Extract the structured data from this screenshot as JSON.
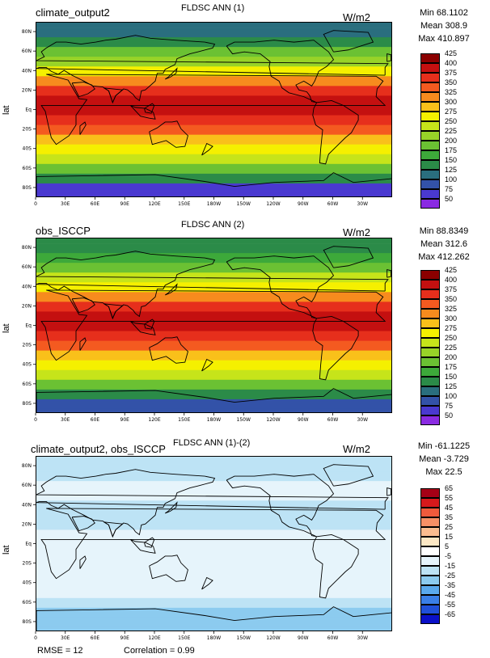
{
  "panels": [
    {
      "left_title": "climate_output2",
      "center_title": "FLDSC ANN (1)",
      "units": "W/m2",
      "stats": {
        "min": "Min 68.1102",
        "mean": "Mean 308.9",
        "max": "Max 410.897"
      },
      "ylabel": "lat",
      "colorbar": {
        "labels": [
          "425",
          "400",
          "375",
          "350",
          "325",
          "300",
          "275",
          "250",
          "225",
          "200",
          "175",
          "150",
          "125",
          "100",
          "75",
          "50"
        ],
        "colors": [
          "#8b0000",
          "#c41010",
          "#e62f1c",
          "#f45a20",
          "#f78b1e",
          "#f9c01a",
          "#f5f000",
          "#c6e41a",
          "#98d328",
          "#6bc133",
          "#3da93a",
          "#2b8b48",
          "#2a6e7e",
          "#3352a8",
          "#4a39d0",
          "#8a2be2"
        ]
      }
    },
    {
      "left_title": "obs_ISCCP",
      "center_title": "FLDSC ANN (2)",
      "units": "W/m2",
      "stats": {
        "min": "Min 88.8349",
        "mean": "Mean 312.6",
        "max": "Max 412.262"
      },
      "ylabel": "lat",
      "colorbar": {
        "labels": [
          "425",
          "400",
          "375",
          "350",
          "325",
          "300",
          "275",
          "250",
          "225",
          "200",
          "175",
          "150",
          "125",
          "100",
          "75",
          "50"
        ],
        "colors": [
          "#8b0000",
          "#c41010",
          "#e62f1c",
          "#f45a20",
          "#f78b1e",
          "#f9c01a",
          "#f5f000",
          "#c6e41a",
          "#98d328",
          "#6bc133",
          "#3da93a",
          "#2b8b48",
          "#2a6e7e",
          "#3352a8",
          "#4a39d0",
          "#8a2be2"
        ]
      }
    },
    {
      "left_title": "climate_output2, obs_ISCCP",
      "center_title": "FLDSC ANN (1)-(2)",
      "units": "W/m2",
      "stats": {
        "min": "Min -61.1225",
        "mean": "Mean -3.729",
        "max": "Max 22.5"
      },
      "ylabel": "lat",
      "colorbar": {
        "labels": [
          "65",
          "55",
          "45",
          "35",
          "25",
          "15",
          "5",
          "-5",
          "-15",
          "-25",
          "-35",
          "-45",
          "-55",
          "-65"
        ],
        "colors": [
          "#a50016",
          "#d7191c",
          "#ef5a3c",
          "#f79066",
          "#fbbd90",
          "#fde8c5",
          "#ffffff",
          "#e6f4fb",
          "#bde3f5",
          "#8ccbef",
          "#5aa9ec",
          "#3a7fe6",
          "#2050d8",
          "#0a10c8"
        ]
      }
    }
  ],
  "footer": {
    "rmse": "RMSE = 12",
    "correlation": "Correlation = 0.99"
  },
  "axes": {
    "x_ticks": [
      "0",
      "30E",
      "60E",
      "90E",
      "120E",
      "150E",
      "180W",
      "150W",
      "120W",
      "90W",
      "60W",
      "30W"
    ],
    "y_ticks": [
      "80N",
      "60N",
      "40N",
      "20N",
      "Eq",
      "20S",
      "40S",
      "60S",
      "80S"
    ]
  },
  "chart_data": [
    {
      "type": "heatmap",
      "title": "FLDSC ANN (1)",
      "ylabel": "lat",
      "units": "W/m2",
      "lat_bands": [
        {
          "lat": 80,
          "value": 135
        },
        {
          "lat": 70,
          "value": 160
        },
        {
          "lat": 60,
          "value": 205
        },
        {
          "lat": 50,
          "value": 245
        },
        {
          "lat": 40,
          "value": 290
        },
        {
          "lat": 30,
          "value": 340
        },
        {
          "lat": 20,
          "value": 375
        },
        {
          "lat": 10,
          "value": 400
        },
        {
          "lat": 0,
          "value": 405
        },
        {
          "lat": -10,
          "value": 395
        },
        {
          "lat": -20,
          "value": 365
        },
        {
          "lat": -30,
          "value": 320
        },
        {
          "lat": -40,
          "value": 280
        },
        {
          "lat": -50,
          "value": 250
        },
        {
          "lat": -60,
          "value": 215
        },
        {
          "lat": -70,
          "value": 150
        },
        {
          "lat": -80,
          "value": 85
        }
      ],
      "stats": {
        "min": 68.1102,
        "mean": 308.9,
        "max": 410.897
      },
      "color_levels": [
        50,
        75,
        100,
        125,
        150,
        175,
        200,
        225,
        250,
        275,
        300,
        325,
        350,
        375,
        400,
        425
      ]
    },
    {
      "type": "heatmap",
      "title": "FLDSC ANN (2)",
      "ylabel": "lat",
      "units": "W/m2",
      "lat_bands": [
        {
          "lat": 80,
          "value": 150
        },
        {
          "lat": 70,
          "value": 175
        },
        {
          "lat": 60,
          "value": 210
        },
        {
          "lat": 50,
          "value": 250
        },
        {
          "lat": 40,
          "value": 295
        },
        {
          "lat": 30,
          "value": 345
        },
        {
          "lat": 20,
          "value": 380
        },
        {
          "lat": 10,
          "value": 400
        },
        {
          "lat": 0,
          "value": 408
        },
        {
          "lat": -10,
          "value": 398
        },
        {
          "lat": -20,
          "value": 368
        },
        {
          "lat": -30,
          "value": 322
        },
        {
          "lat": -40,
          "value": 285
        },
        {
          "lat": -50,
          "value": 255
        },
        {
          "lat": -60,
          "value": 220
        },
        {
          "lat": -70,
          "value": 165
        },
        {
          "lat": -80,
          "value": 110
        }
      ],
      "stats": {
        "min": 88.8349,
        "mean": 312.6,
        "max": 412.262
      },
      "color_levels": [
        50,
        75,
        100,
        125,
        150,
        175,
        200,
        225,
        250,
        275,
        300,
        325,
        350,
        375,
        400,
        425
      ]
    },
    {
      "type": "heatmap",
      "title": "FLDSC ANN (1)-(2)",
      "ylabel": "lat",
      "units": "W/m2",
      "lat_bands": [
        {
          "lat": 80,
          "value": -10
        },
        {
          "lat": 70,
          "value": -8
        },
        {
          "lat": 60,
          "value": -4
        },
        {
          "lat": 50,
          "value": -5
        },
        {
          "lat": 40,
          "value": -6
        },
        {
          "lat": 30,
          "value": -8
        },
        {
          "lat": 20,
          "value": -6
        },
        {
          "lat": 10,
          "value": -2
        },
        {
          "lat": 0,
          "value": -2
        },
        {
          "lat": -10,
          "value": -2
        },
        {
          "lat": -20,
          "value": -2
        },
        {
          "lat": -30,
          "value": -2
        },
        {
          "lat": -40,
          "value": -3
        },
        {
          "lat": -50,
          "value": -4
        },
        {
          "lat": -60,
          "value": -6
        },
        {
          "lat": -70,
          "value": -18
        },
        {
          "lat": -80,
          "value": -22
        }
      ],
      "stats": {
        "min": -61.1225,
        "mean": -3.729,
        "max": 22.5,
        "rmse": 12,
        "correlation": 0.99
      },
      "color_levels": [
        -65,
        -55,
        -45,
        -35,
        -25,
        -15,
        -5,
        5,
        15,
        25,
        35,
        45,
        55,
        65
      ]
    }
  ]
}
